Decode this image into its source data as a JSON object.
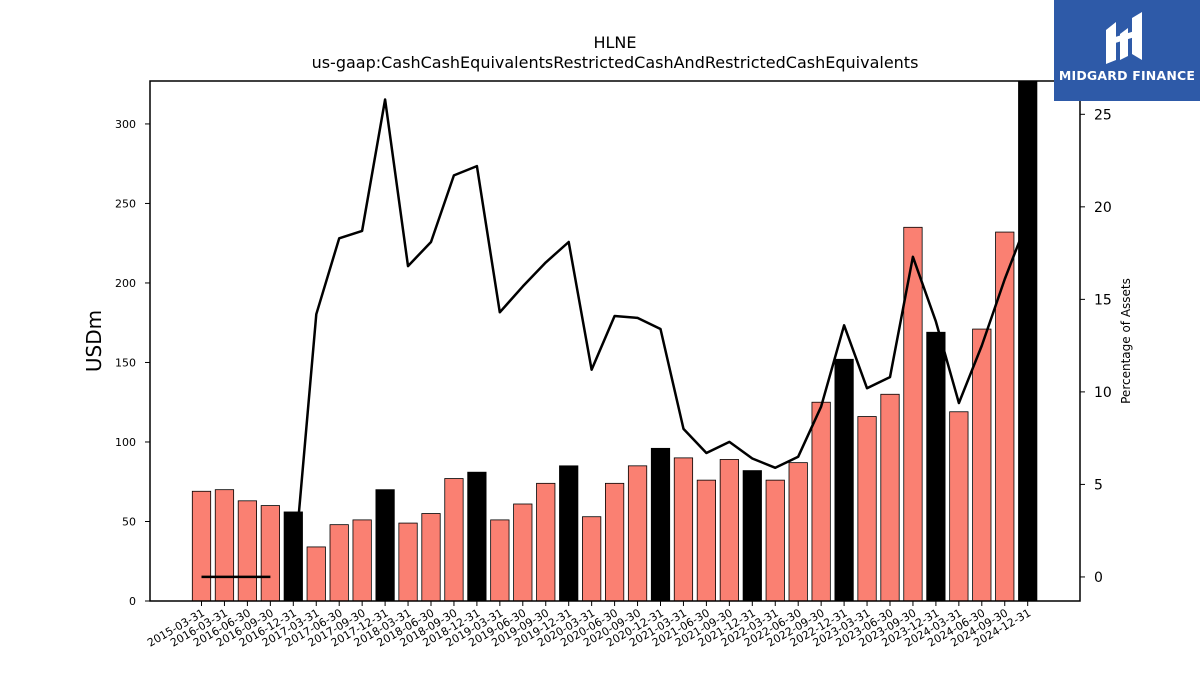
{
  "chart_data": {
    "type": "bar",
    "title": "HLNE",
    "subtitle": "us-gaap:CashCashEquivalentsRestrictedCashAndRestrictedCashEquivalents",
    "ylabel": "USDm",
    "y2label": "Percentage of Assets",
    "ylim": [
      0,
      327
    ],
    "y2lim": [
      -1.3,
      26.8
    ],
    "yticks": [
      0,
      50,
      100,
      150,
      200,
      250,
      300
    ],
    "y2ticks": [
      0,
      5,
      10,
      15,
      20,
      25
    ],
    "categories": [
      "2015-03-31",
      "2016-03-31",
      "2016-06-30",
      "2016-09-30",
      "2016-12-31",
      "2017-03-31",
      "2017-06-30",
      "2017-09-30",
      "2017-12-31",
      "2018-03-31",
      "2018-06-30",
      "2018-09-30",
      "2018-12-31",
      "2019-03-31",
      "2019-06-30",
      "2019-09-30",
      "2019-12-31",
      "2020-03-31",
      "2020-06-30",
      "2020-09-30",
      "2020-12-31",
      "2021-03-31",
      "2021-06-30",
      "2021-09-30",
      "2021-12-31",
      "2022-03-31",
      "2022-06-30",
      "2022-09-30",
      "2022-12-31",
      "2023-03-31",
      "2023-06-30",
      "2023-09-30",
      "2023-12-31",
      "2024-03-31",
      "2024-06-30",
      "2024-09-30",
      "2024-12-31"
    ],
    "series": [
      {
        "kind": "bar",
        "axis": "left",
        "values": [
          69,
          70,
          63,
          60,
          56,
          34,
          48,
          51,
          70,
          49,
          55,
          77,
          81,
          51,
          61,
          74,
          85,
          53,
          74,
          85,
          96,
          90,
          76,
          89,
          82,
          76,
          87,
          125,
          152,
          116,
          130,
          235,
          169,
          119,
          171,
          232,
          327
        ],
        "colors": [
          "#fa8072",
          "#fa8072",
          "#fa8072",
          "#fa8072",
          "#000000",
          "#fa8072",
          "#fa8072",
          "#fa8072",
          "#000000",
          "#fa8072",
          "#fa8072",
          "#fa8072",
          "#000000",
          "#fa8072",
          "#fa8072",
          "#fa8072",
          "#000000",
          "#fa8072",
          "#fa8072",
          "#fa8072",
          "#000000",
          "#fa8072",
          "#fa8072",
          "#fa8072",
          "#000000",
          "#fa8072",
          "#fa8072",
          "#fa8072",
          "#000000",
          "#fa8072",
          "#fa8072",
          "#fa8072",
          "#000000",
          "#fa8072",
          "#fa8072",
          "#fa8072",
          "#000000"
        ]
      },
      {
        "kind": "line",
        "axis": "right",
        "values": [
          0.0,
          0.0,
          0.0,
          0.0,
          0.0,
          14.2,
          18.3,
          18.7,
          25.8,
          16.8,
          18.1,
          21.7,
          22.2,
          14.3,
          15.7,
          17.0,
          18.1,
          11.2,
          14.1,
          14.0,
          13.4,
          8.0,
          6.7,
          7.3,
          6.4,
          5.9,
          6.5,
          9.2,
          13.6,
          10.2,
          10.8,
          17.3,
          13.8,
          9.4,
          12.5,
          16.1,
          19.3
        ]
      }
    ],
    "grid": false,
    "legend": "none"
  },
  "logo": {
    "text": "MIDGARD FINANCE",
    "background": "#2e5aa8"
  }
}
